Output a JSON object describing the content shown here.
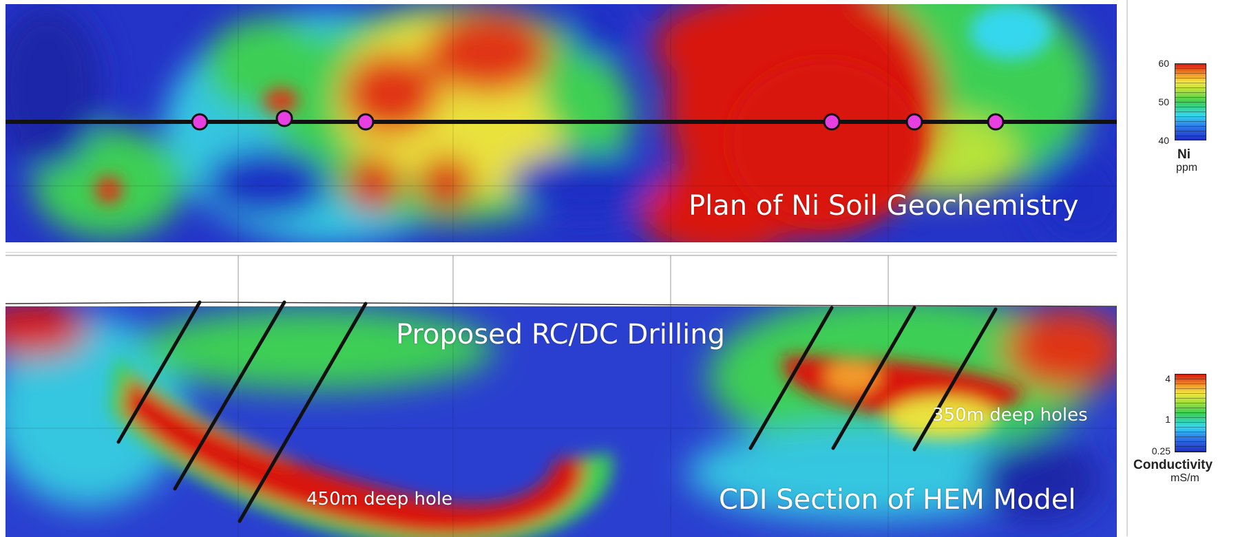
{
  "plan_panel": {
    "title": "Plan of Ni Soil Geochemistry"
  },
  "section_panel": {
    "drilling_title": "Proposed RC/DC Drilling",
    "section_title": "CDI Section of HEM Model",
    "deep_hole_label": "450m deep hole",
    "deep_holes_label": "350m deep holes"
  },
  "ni_legend": {
    "ticks": [
      "60",
      "50",
      "40"
    ],
    "title": "Ni",
    "unit": "ppm"
  },
  "conductivity_legend": {
    "ticks": [
      "4",
      "1",
      "0.25"
    ],
    "title": "Conductivity",
    "unit": "mS/m"
  },
  "colors": {
    "low": "#1f2fc4",
    "mid_low": "#35d7ee",
    "mid": "#3ccf55",
    "mid_high": "#f4e640",
    "high": "#d9180e",
    "collar_marker": "#e83fe0",
    "survey_line": "#111111"
  }
}
